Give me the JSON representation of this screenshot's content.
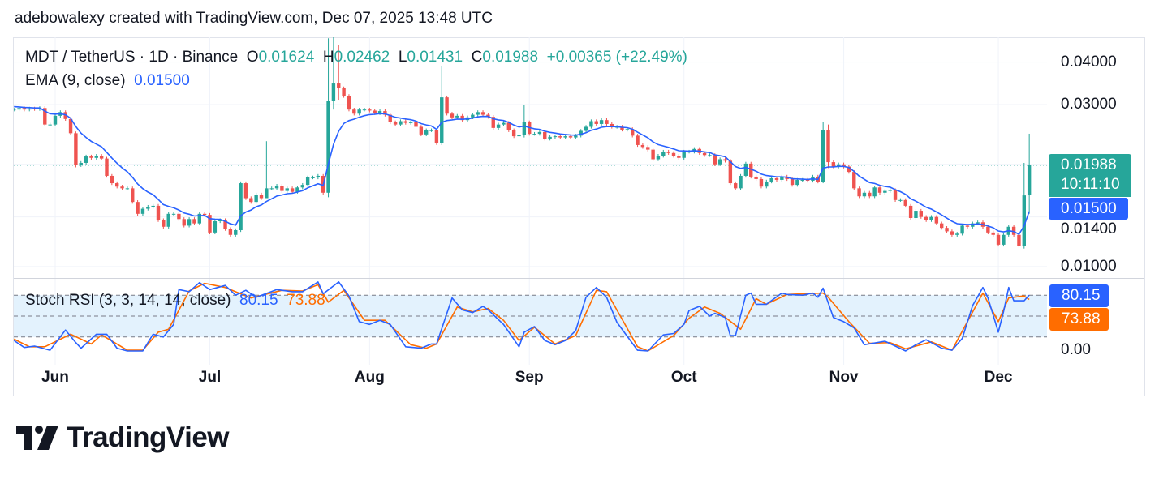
{
  "credit": "adebowalexy created with TradingView.com, Dec 07, 2025 13:48 UTC",
  "legend": {
    "symbol": "MDT / TetherUS · 1D · Binance",
    "o_label": "O",
    "o": "0.01624",
    "h_label": "H",
    "h": "0.02462",
    "l_label": "L",
    "l": "0.01431",
    "c_label": "C",
    "c": "0.01988",
    "change": "+0.00365 (+22.49%)",
    "ema_label": "EMA (9, close)",
    "ema_value": "0.01500",
    "stoch_label": "Stoch RSI (3, 3, 14, 14, close)",
    "stoch_k": "80.15",
    "stoch_d": "73.88"
  },
  "tags": {
    "last_price": "0.01988",
    "countdown": "10:11:10",
    "ema": "0.01500",
    "stoch_k": "80.15",
    "stoch_d": "73.88"
  },
  "colors": {
    "up": "#26a69a",
    "down": "#ef5350",
    "ema": "#2962ff",
    "stoch_k": "#2962ff",
    "stoch_d": "#ff6d00",
    "band": "#e3f2fd"
  },
  "logo": {
    "text": "TradingView"
  },
  "chart_data": {
    "type": "candlestick",
    "scale": "log",
    "interval": "1D",
    "price_ticks": [
      {
        "value": 0.04,
        "label": "0.04000"
      },
      {
        "value": 0.03,
        "label": "0.03000"
      },
      {
        "value": 0.014,
        "label": "0.01400"
      },
      {
        "value": 0.01,
        "label": "0.01000"
      }
    ],
    "months": [
      {
        "date": "06-01",
        "label": "Jun"
      },
      {
        "date": "07-01",
        "label": "Jul"
      },
      {
        "date": "08-01",
        "label": "Aug"
      },
      {
        "date": "09-01",
        "label": "Sep"
      },
      {
        "date": "10-01",
        "label": "Oct"
      },
      {
        "date": "11-01",
        "label": "Nov"
      },
      {
        "date": "12-01",
        "label": "Dec"
      }
    ],
    "closes": [
      0.029,
      0.0293,
      0.029,
      0.0292,
      0.0291,
      0.0293,
      0.0262,
      0.0262,
      0.0278,
      0.0285,
      0.0272,
      0.0247,
      0.0199,
      0.0202,
      0.0211,
      0.0209,
      0.0212,
      0.0208,
      0.0185,
      0.0176,
      0.0172,
      0.017,
      0.017,
      0.0155,
      0.0143,
      0.0148,
      0.015,
      0.0151,
      0.0137,
      0.0131,
      0.0143,
      0.0143,
      0.0138,
      0.0132,
      0.0138,
      0.0134,
      0.0143,
      0.0142,
      0.0126,
      0.0136,
      0.0137,
      0.0129,
      0.0124,
      0.0128,
      0.0176,
      0.0159,
      0.0155,
      0.0163,
      0.0159,
      0.017,
      0.017,
      0.0173,
      0.0167,
      0.017,
      0.0166,
      0.0171,
      0.0174,
      0.0183,
      0.0183,
      0.0185,
      0.0165,
      0.0307,
      0.0346,
      0.0335,
      0.0318,
      0.029,
      0.0282,
      0.029,
      0.029,
      0.0288,
      0.0283,
      0.0287,
      0.028,
      0.0266,
      0.0262,
      0.0268,
      0.0265,
      0.0266,
      0.0258,
      0.0245,
      0.0252,
      0.0252,
      0.0231,
      0.0315,
      0.0282,
      0.0275,
      0.0278,
      0.027,
      0.0275,
      0.028,
      0.0285,
      0.028,
      0.0276,
      0.0256,
      0.0262,
      0.0265,
      0.0252,
      0.0242,
      0.0244,
      0.0266,
      0.0246,
      0.0246,
      0.0249,
      0.0238,
      0.0241,
      0.0242,
      0.024,
      0.0242,
      0.024,
      0.0243,
      0.0251,
      0.0258,
      0.0268,
      0.0263,
      0.027,
      0.0263,
      0.0258,
      0.0258,
      0.0253,
      0.0254,
      0.0243,
      0.0228,
      0.0225,
      0.0221,
      0.0207,
      0.0212,
      0.0218,
      0.0216,
      0.0212,
      0.0209,
      0.0218,
      0.0218,
      0.0222,
      0.0216,
      0.0213,
      0.0213,
      0.02,
      0.0207,
      0.0205,
      0.0176,
      0.017,
      0.0185,
      0.0201,
      0.0184,
      0.0181,
      0.0172,
      0.0178,
      0.0182,
      0.018,
      0.0184,
      0.0181,
      0.0174,
      0.018,
      0.018,
      0.0179,
      0.0184,
      0.0178,
      0.0252,
      0.0203,
      0.0197,
      0.02,
      0.0197,
      0.019,
      0.017,
      0.0161,
      0.0165,
      0.0161,
      0.0171,
      0.0165,
      0.0167,
      0.0168,
      0.0157,
      0.0157,
      0.0151,
      0.0139,
      0.0146,
      0.014,
      0.0137,
      0.014,
      0.0134,
      0.013,
      0.0127,
      0.0124,
      0.0125,
      0.0132,
      0.0131,
      0.0134,
      0.0135,
      0.0131,
      0.0126,
      0.0124,
      0.0116,
      0.0124,
      0.0131,
      0.0124,
      0.0115,
      0.0162,
      0.01988
    ],
    "last_candle": {
      "open": 0.01624,
      "high": 0.02462,
      "low": 0.01431,
      "close": 0.01988
    },
    "wicks": {
      "12": [
        0.025,
        0.0196
      ],
      "49": [
        0.0234,
        0.0165
      ],
      "61": [
        0.047,
        0.016
      ],
      "62": [
        0.048,
        0.029
      ],
      "63": [
        0.045,
        0.031
      ],
      "83": [
        0.0389,
        0.0228
      ],
      "99": [
        0.03,
        0.024
      ],
      "157": [
        0.0267,
        0.0176
      ],
      "158": [
        0.0262,
        0.0195
      ],
      "196": [
        0.0202,
        0.0113
      ],
      "197": [
        0.02462,
        0.01431
      ]
    },
    "ema_period": 9,
    "stoch_rsi": {
      "levels": [
        80,
        50,
        20
      ],
      "axis_label": "0.00",
      "k": [
        [
          "05-24",
          15
        ],
        [
          "05-26",
          5
        ],
        [
          "05-28",
          7
        ],
        [
          "05-31",
          1
        ],
        [
          "06-03",
          30
        ],
        [
          "06-05",
          12
        ],
        [
          "06-06",
          4
        ],
        [
          "06-09",
          24
        ],
        [
          "06-11",
          24
        ],
        [
          "06-13",
          4
        ],
        [
          "06-15",
          0
        ],
        [
          "06-18",
          0
        ],
        [
          "06-20",
          24
        ],
        [
          "06-22",
          20
        ],
        [
          "06-24",
          38
        ],
        [
          "06-25",
          88
        ],
        [
          "06-27",
          85
        ],
        [
          "06-29",
          98
        ],
        [
          "07-01",
          88
        ],
        [
          "07-04",
          94
        ],
        [
          "07-06",
          80
        ],
        [
          "07-08",
          87
        ],
        [
          "07-10",
          77
        ],
        [
          "07-14",
          88
        ],
        [
          "07-17",
          85
        ],
        [
          "07-19",
          85
        ],
        [
          "07-22",
          99
        ],
        [
          "07-23",
          82
        ],
        [
          "07-26",
          99
        ],
        [
          "07-28",
          79
        ],
        [
          "07-30",
          42
        ],
        [
          "08-01",
          38
        ],
        [
          "08-03",
          44
        ],
        [
          "08-05",
          38
        ],
        [
          "08-08",
          6
        ],
        [
          "08-11",
          4
        ],
        [
          "08-13",
          10
        ],
        [
          "08-14",
          10
        ],
        [
          "08-17",
          76
        ],
        [
          "08-19",
          59
        ],
        [
          "08-21",
          55
        ],
        [
          "08-23",
          64
        ],
        [
          "08-24",
          59
        ],
        [
          "08-27",
          38
        ],
        [
          "08-30",
          6
        ],
        [
          "08-31",
          27
        ],
        [
          "09-02",
          35
        ],
        [
          "09-04",
          15
        ],
        [
          "09-06",
          9
        ],
        [
          "09-08",
          15
        ],
        [
          "09-10",
          29
        ],
        [
          "09-12",
          77
        ],
        [
          "09-14",
          91
        ],
        [
          "09-16",
          77
        ],
        [
          "09-18",
          41
        ],
        [
          "09-22",
          1
        ],
        [
          "09-24",
          0
        ],
        [
          "09-27",
          23
        ],
        [
          "09-29",
          25
        ],
        [
          "10-01",
          38
        ],
        [
          "10-02",
          58
        ],
        [
          "10-04",
          64
        ],
        [
          "10-06",
          50
        ],
        [
          "10-07",
          54
        ],
        [
          "10-09",
          48
        ],
        [
          "10-10",
          22
        ],
        [
          "10-11",
          22
        ],
        [
          "10-13",
          80
        ],
        [
          "10-14",
          83
        ],
        [
          "10-15",
          67
        ],
        [
          "10-17",
          67
        ],
        [
          "10-20",
          83
        ],
        [
          "10-21",
          81
        ],
        [
          "10-24",
          80
        ],
        [
          "10-26",
          83
        ],
        [
          "10-27",
          77
        ],
        [
          "10-28",
          90
        ],
        [
          "10-30",
          48
        ],
        [
          "11-01",
          42
        ],
        [
          "11-03",
          33
        ],
        [
          "11-05",
          9
        ],
        [
          "11-09",
          14
        ],
        [
          "11-13",
          0
        ],
        [
          "11-15",
          9
        ],
        [
          "11-17",
          16
        ],
        [
          "11-20",
          4
        ],
        [
          "11-22",
          1
        ],
        [
          "11-24",
          18
        ],
        [
          "11-26",
          65
        ],
        [
          "11-28",
          91
        ],
        [
          "11-29",
          76
        ],
        [
          "12-01",
          27
        ],
        [
          "12-02",
          56
        ],
        [
          "12-03",
          91
        ],
        [
          "12-04",
          72
        ],
        [
          "12-06",
          72
        ],
        [
          "12-07",
          80.15
        ]
      ],
      "d": [
        [
          "05-24",
          17
        ],
        [
          "05-27",
          6
        ],
        [
          "05-30",
          6
        ],
        [
          "06-04",
          24
        ],
        [
          "06-08",
          10
        ],
        [
          "06-10",
          23
        ],
        [
          "06-15",
          1
        ],
        [
          "06-18",
          1
        ],
        [
          "06-21",
          27
        ],
        [
          "06-23",
          31
        ],
        [
          "06-27",
          86
        ],
        [
          "06-30",
          97
        ],
        [
          "07-04",
          91
        ],
        [
          "07-09",
          76
        ],
        [
          "07-15",
          87
        ],
        [
          "07-19",
          86
        ],
        [
          "07-22",
          95
        ],
        [
          "07-24",
          70
        ],
        [
          "07-27",
          87
        ],
        [
          "07-31",
          44
        ],
        [
          "08-04",
          44
        ],
        [
          "08-09",
          9
        ],
        [
          "08-12",
          4
        ],
        [
          "08-14",
          10
        ],
        [
          "08-18",
          63
        ],
        [
          "08-21",
          56
        ],
        [
          "08-24",
          61
        ],
        [
          "08-27",
          44
        ],
        [
          "08-30",
          15
        ],
        [
          "09-02",
          34
        ],
        [
          "09-06",
          10
        ],
        [
          "09-10",
          22
        ],
        [
          "09-14",
          87
        ],
        [
          "09-16",
          85
        ],
        [
          "09-22",
          6
        ],
        [
          "09-24",
          0
        ],
        [
          "09-29",
          22
        ],
        [
          "10-02",
          47
        ],
        [
          "10-05",
          63
        ],
        [
          "10-08",
          54
        ],
        [
          "10-12",
          31
        ],
        [
          "10-15",
          75
        ],
        [
          "10-17",
          67
        ],
        [
          "10-21",
          81
        ],
        [
          "10-28",
          83
        ],
        [
          "10-29",
          77
        ],
        [
          "11-02",
          42
        ],
        [
          "11-06",
          11
        ],
        [
          "11-10",
          12
        ],
        [
          "11-13",
          3
        ],
        [
          "11-18",
          13
        ],
        [
          "11-22",
          1
        ],
        [
          "11-28",
          83
        ],
        [
          "12-01",
          42
        ],
        [
          "12-03",
          76
        ],
        [
          "12-06",
          79
        ],
        [
          "12-07",
          73.88
        ]
      ]
    }
  }
}
